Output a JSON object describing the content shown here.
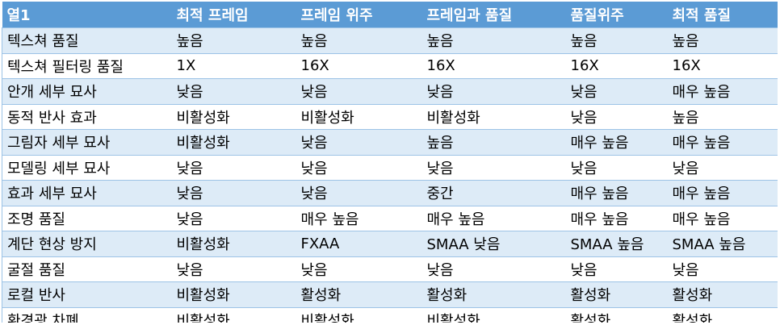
{
  "table": {
    "headers": [
      "열1",
      "최적 프레임",
      "프레임 위주",
      "프레임과 품질",
      "품질위주",
      "최적 품질"
    ],
    "rows": [
      [
        "텍스쳐 품질",
        "높음",
        "높음",
        "높음",
        "높음",
        "높음"
      ],
      [
        "텍스쳐 필터링 품질",
        "1X",
        "16X",
        "16X",
        "16X",
        "16X"
      ],
      [
        "안개 세부 묘사",
        "낮음",
        "낮음",
        "낮음",
        "낮음",
        "매우 높음"
      ],
      [
        "동적 반사 효과",
        "비활성화",
        "비활성화",
        "비활성화",
        "낮음",
        "높음"
      ],
      [
        "그림자 세부 묘사",
        "비활성화",
        "낮음",
        "높음",
        "매우 높음",
        "매우 높음"
      ],
      [
        "모델링 세부 묘사",
        "낮음",
        "낮음",
        "낮음",
        "낮음",
        "낮음"
      ],
      [
        "효과 세부 묘사",
        "낮음",
        "낮음",
        "중간",
        "매우 높음",
        "매우 높음"
      ],
      [
        "조명 품질",
        "낮음",
        "매우 높음",
        "매우 높음",
        "매우 높음",
        "매우 높음"
      ],
      [
        "계단 현상 방지",
        "비활성화",
        "FXAA",
        "SMAA 낮음",
        "SMAA 높음",
        "SMAA 높음"
      ],
      [
        "굴절 품질",
        "낮음",
        "낮음",
        "낮음",
        "낮음",
        "낮음"
      ],
      [
        "로컬 반사",
        "비활성화",
        "활성화",
        "활성화",
        "활성화",
        "활성화"
      ],
      [
        "환경광 차폐",
        "비활성화",
        "비활성화",
        "비활성화",
        "활성화",
        "활성화"
      ]
    ]
  },
  "colors": {
    "header_bg": "#5b9bd5",
    "header_text": "#ffffff",
    "band_row": "#ddebf7",
    "plain_row": "#ffffff",
    "border": "#9dc3e6"
  }
}
